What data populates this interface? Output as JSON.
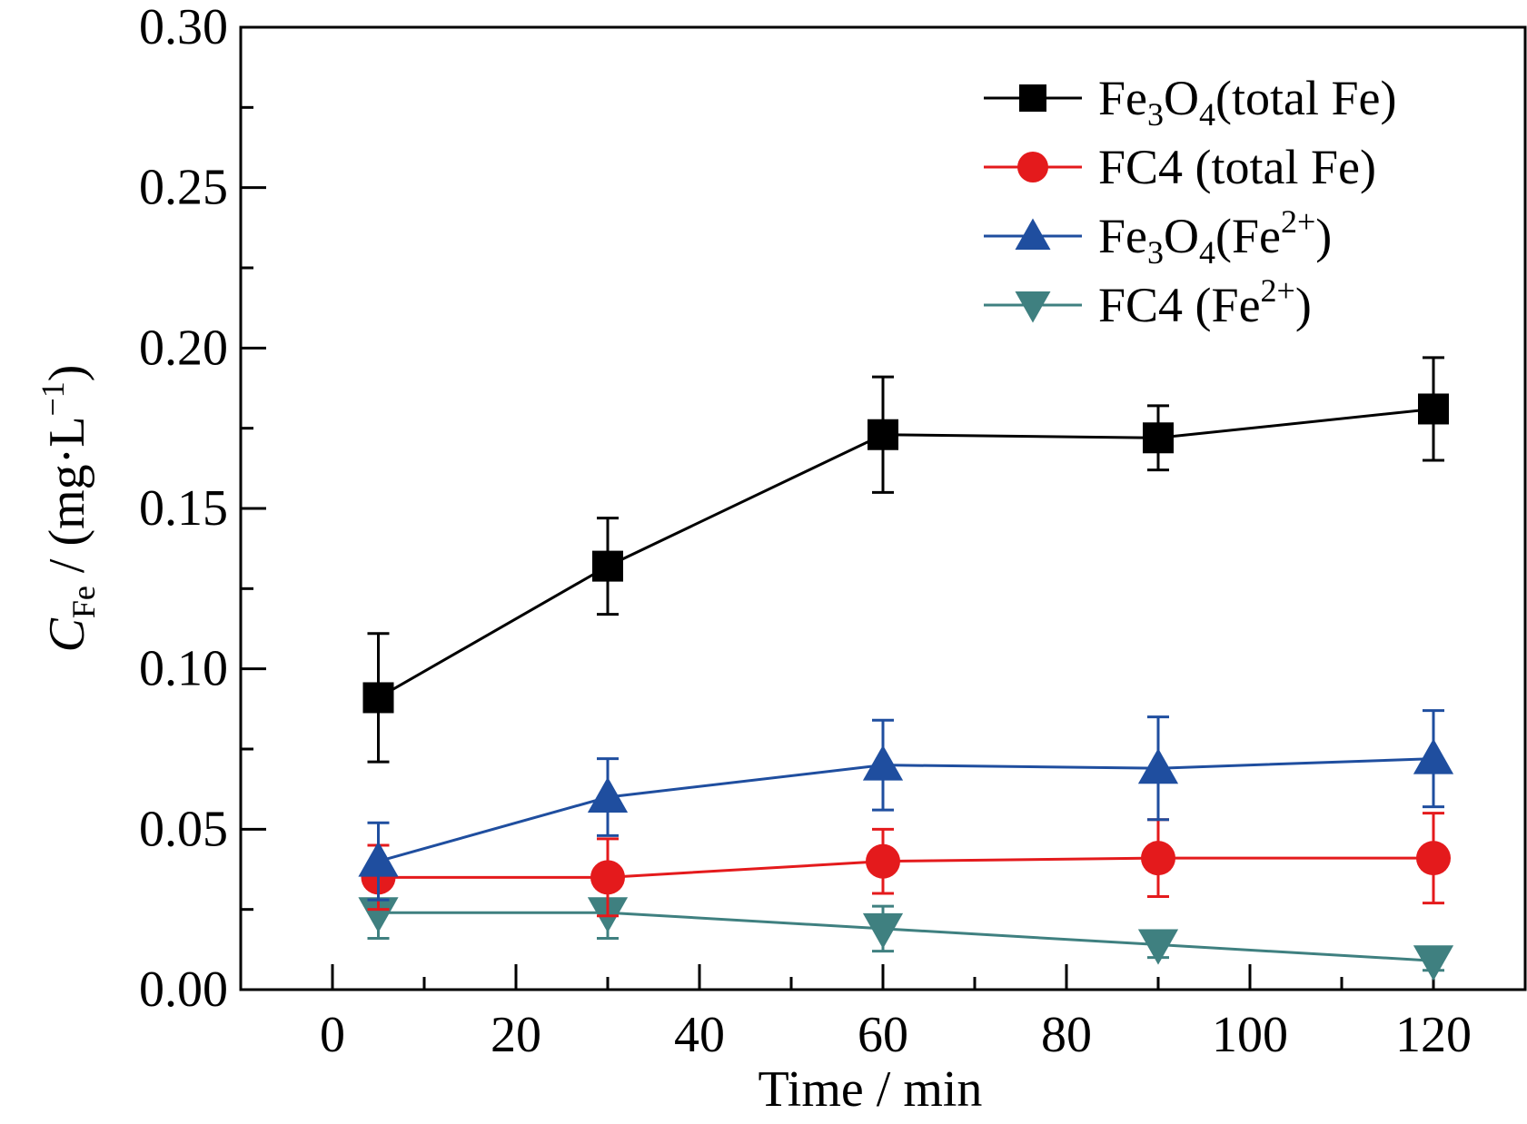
{
  "chart_data": {
    "type": "line",
    "x": [
      5,
      30,
      60,
      90,
      120
    ],
    "xlim": [
      -10,
      130
    ],
    "ylim": [
      0,
      0.3
    ],
    "x_ticks": [
      "0",
      "20",
      "40",
      "60",
      "80",
      "100",
      "120"
    ],
    "x_tick_values": [
      0,
      20,
      40,
      60,
      80,
      100,
      120
    ],
    "y_ticks": [
      "0.00",
      "0.05",
      "0.10",
      "0.15",
      "0.20",
      "0.25",
      "0.30"
    ],
    "y_tick_values": [
      0,
      0.05,
      0.1,
      0.15,
      0.2,
      0.25,
      0.3
    ],
    "xlabel": "Time / min",
    "ylabel": {
      "symbol": "C",
      "subscript": "Fe",
      "text": " / (mg·L",
      "superscript": "−1",
      "close": ")"
    },
    "grid": false,
    "legend_position": "top-right",
    "series": [
      {
        "name": "Fe3O4 (total Fe)",
        "legend_parts": [
          {
            "t": "Fe",
            "s": "n"
          },
          {
            "t": "3",
            "s": "sub"
          },
          {
            "t": "O",
            "s": "n"
          },
          {
            "t": "4",
            "s": "sub"
          },
          {
            "t": "(total Fe)",
            "s": "n"
          }
        ],
        "color": "#000000",
        "marker": "square",
        "values": [
          0.091,
          0.132,
          0.173,
          0.172,
          0.181
        ],
        "error": [
          0.02,
          0.015,
          0.018,
          0.01,
          0.016
        ]
      },
      {
        "name": "FC4 (total Fe)",
        "legend_parts": [
          {
            "t": "FC4 (total Fe)",
            "s": "n"
          }
        ],
        "color": "#e41a1c",
        "marker": "circle",
        "values": [
          0.035,
          0.035,
          0.04,
          0.041,
          0.041
        ],
        "error": [
          0.01,
          0.012,
          0.01,
          0.012,
          0.014
        ]
      },
      {
        "name": "Fe3O4 (Fe2+)",
        "legend_parts": [
          {
            "t": "Fe",
            "s": "n"
          },
          {
            "t": "3",
            "s": "sub"
          },
          {
            "t": "O",
            "s": "n"
          },
          {
            "t": "4",
            "s": "sub"
          },
          {
            "t": "(Fe",
            "s": "n"
          },
          {
            "t": "2+",
            "s": "sup"
          },
          {
            "t": ")",
            "s": "n"
          }
        ],
        "color": "#1f4e9f",
        "marker": "triangle-up",
        "values": [
          0.04,
          0.06,
          0.07,
          0.069,
          0.072
        ],
        "error": [
          0.012,
          0.012,
          0.014,
          0.016,
          0.015
        ]
      },
      {
        "name": "FC4 (Fe2+)",
        "legend_parts": [
          {
            "t": "FC4 (Fe",
            "s": "n"
          },
          {
            "t": "2+",
            "s": "sup"
          },
          {
            "t": ")",
            "s": "n"
          }
        ],
        "color": "#3f8080",
        "marker": "triangle-down",
        "values": [
          0.024,
          0.024,
          0.019,
          0.014,
          0.009
        ],
        "error": [
          0.008,
          0.008,
          0.007,
          0.004,
          0.003
        ]
      }
    ]
  }
}
